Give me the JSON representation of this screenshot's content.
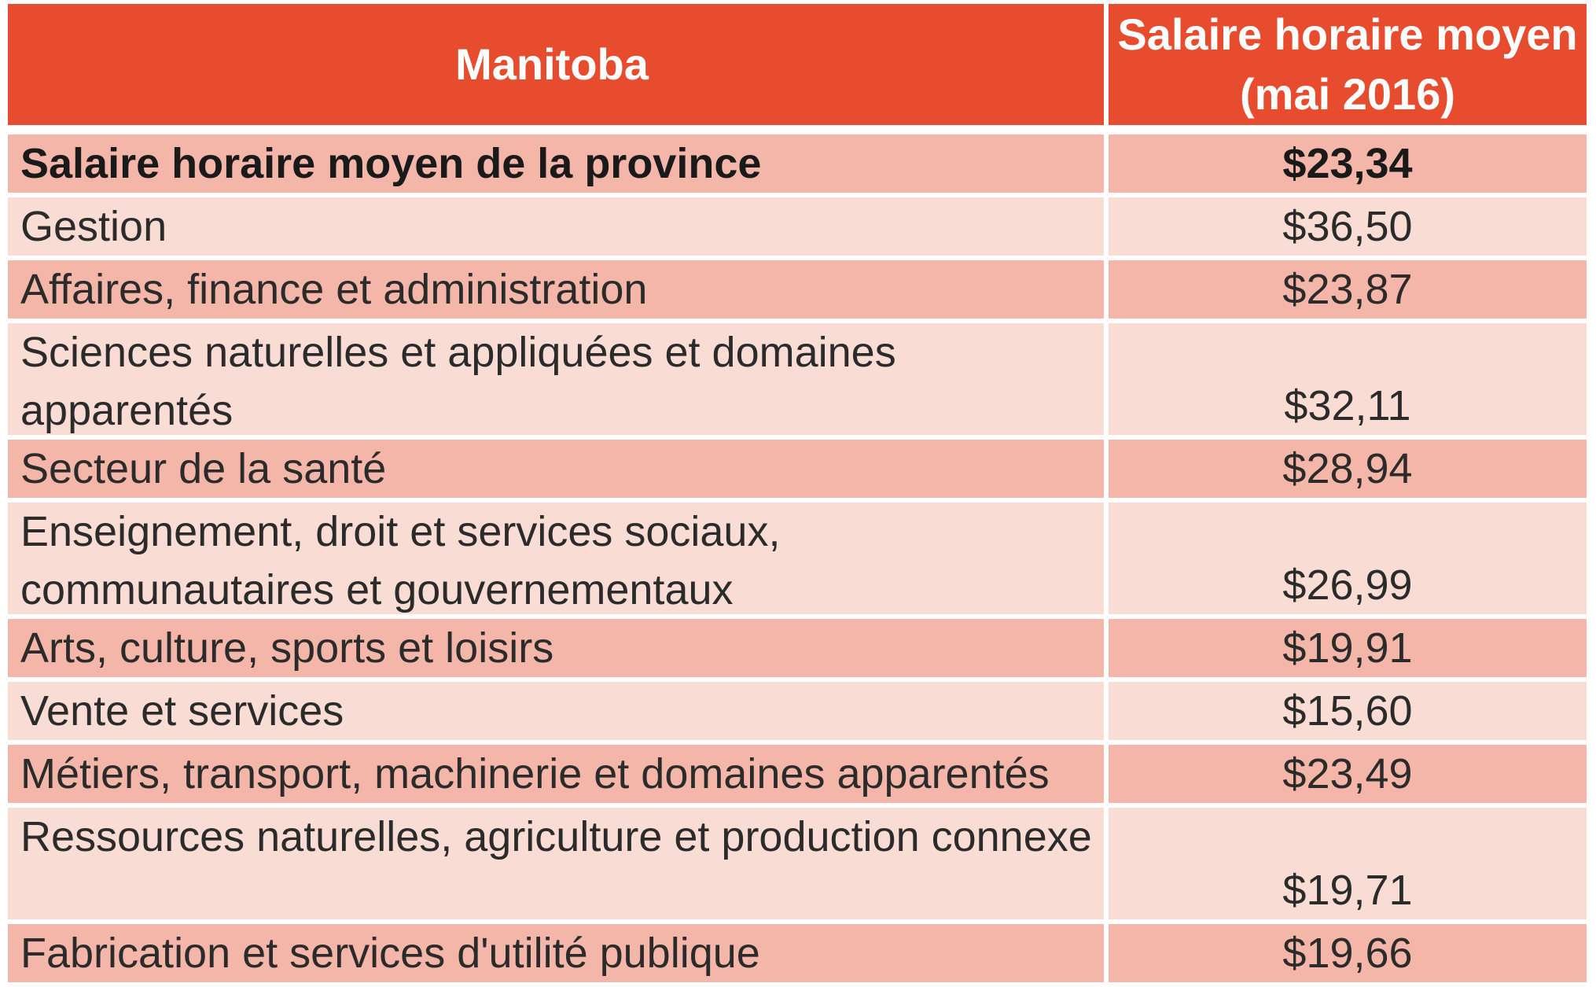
{
  "table": {
    "header": {
      "category": "Manitoba",
      "value": "Salaire horaire moyen (mai 2016)"
    },
    "rows": [
      {
        "label": "Salaire horaire moyen de la province",
        "value": "$23,34"
      },
      {
        "label": "Gestion",
        "value": "$36,50"
      },
      {
        "label": "Affaires, finance et administration",
        "value": "$23,87"
      },
      {
        "label": "Sciences naturelles et appliquées et domaines apparentés",
        "value": "$32,11"
      },
      {
        "label": "Secteur de la santé",
        "value": "$28,94"
      },
      {
        "label": "Enseignement, droit et services sociaux, communautaires et gouvernementaux",
        "value": "$26,99"
      },
      {
        "label": "Arts, culture, sports et loisirs",
        "value": "$19,91"
      },
      {
        "label": "Vente et services",
        "value": "$15,60"
      },
      {
        "label": "Métiers, transport, machinerie et domaines apparentés",
        "value": "$23,49"
      },
      {
        "label": "Ressources naturelles, agriculture et production connexe",
        "value": "$19,71"
      },
      {
        "label": "Fabrication et services d'utilité publique",
        "value": "$19,66"
      }
    ]
  },
  "colors": {
    "header_bg": "#e64c2d",
    "row_dark": "#f4b6a8",
    "row_light": "#f9dcd4"
  }
}
